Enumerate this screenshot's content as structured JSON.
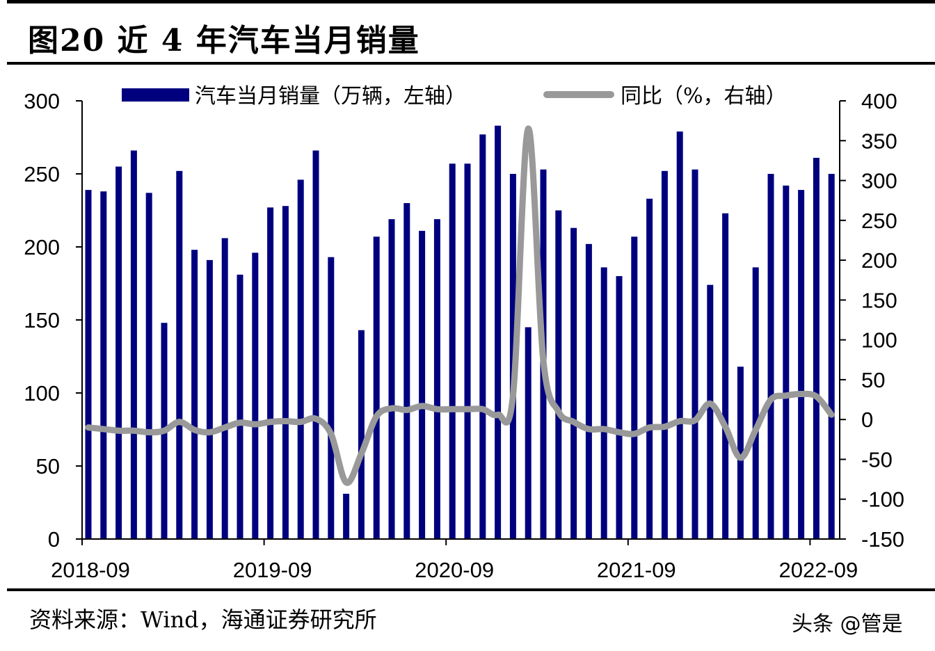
{
  "header": {
    "title": "图20 近 4 年汽车当月销量"
  },
  "footer": {
    "source": "资料来源：Wind，海通证券研究所",
    "watermark": "头条 @管是"
  },
  "colors": {
    "bar": "#00007f",
    "line": "#999999",
    "axis": "#000000"
  },
  "chart_data": {
    "type": "bar",
    "title": "图20 近 4 年汽车当月销量",
    "xlabel": "",
    "ylabel": "",
    "legend_position": "top",
    "grid": false,
    "categories": [
      "2018-09",
      "2018-10",
      "2018-11",
      "2018-12",
      "2019-01",
      "2019-02",
      "2019-03",
      "2019-04",
      "2019-05",
      "2019-06",
      "2019-07",
      "2019-08",
      "2019-09",
      "2019-10",
      "2019-11",
      "2019-12",
      "2020-01",
      "2020-02",
      "2020-03",
      "2020-04",
      "2020-05",
      "2020-06",
      "2020-07",
      "2020-08",
      "2020-09",
      "2020-10",
      "2020-11",
      "2020-12",
      "2021-01",
      "2021-02",
      "2021-03",
      "2021-04",
      "2021-05",
      "2021-06",
      "2021-07",
      "2021-08",
      "2021-09",
      "2021-10",
      "2021-11",
      "2021-12",
      "2022-01",
      "2022-02",
      "2022-03",
      "2022-04",
      "2022-05",
      "2022-06",
      "2022-07",
      "2022-08",
      "2022-09",
      "2022-10"
    ],
    "x_tick_labels": [
      "2018-09",
      "2019-09",
      "2020-09",
      "2021-09",
      "2022-09"
    ],
    "series": [
      {
        "name": "汽车当月销量（万辆，左轴）",
        "type": "bar",
        "axis": "left",
        "values": [
          239,
          238,
          255,
          266,
          237,
          148,
          252,
          198,
          191,
          206,
          181,
          196,
          227,
          228,
          246,
          266,
          193,
          31,
          143,
          207,
          219,
          230,
          211,
          219,
          257,
          257,
          277,
          283,
          250,
          145,
          253,
          225,
          213,
          202,
          186,
          180,
          207,
          233,
          252,
          279,
          253,
          174,
          223,
          118,
          186,
          250,
          242,
          239,
          261,
          250
        ]
      },
      {
        "name": "同比（%，右轴）",
        "type": "line",
        "axis": "right",
        "values": [
          -10,
          -12,
          -14,
          -14,
          -16,
          -14,
          -3,
          -13,
          -16,
          -10,
          -4,
          -6,
          -3,
          -2,
          -3,
          1,
          -18,
          -79,
          -43,
          4,
          14,
          12,
          17,
          13,
          13,
          13,
          13,
          6,
          30,
          365,
          74,
          10,
          -3,
          -12,
          -12,
          -16,
          -18,
          -10,
          -9,
          -2,
          -1,
          20,
          -9,
          -48,
          -13,
          25,
          30,
          32,
          29,
          6
        ]
      }
    ],
    "y_left": {
      "ylim": [
        0,
        300
      ],
      "ticks": [
        0,
        50,
        100,
        150,
        200,
        250,
        300
      ]
    },
    "y_right": {
      "ylim": [
        -150,
        400
      ],
      "ticks": [
        -150,
        -100,
        -50,
        0,
        50,
        100,
        150,
        200,
        250,
        300,
        350,
        400
      ]
    },
    "legend": [
      "汽车当月销量（万辆，左轴）",
      "同比（%，右轴）"
    ]
  }
}
